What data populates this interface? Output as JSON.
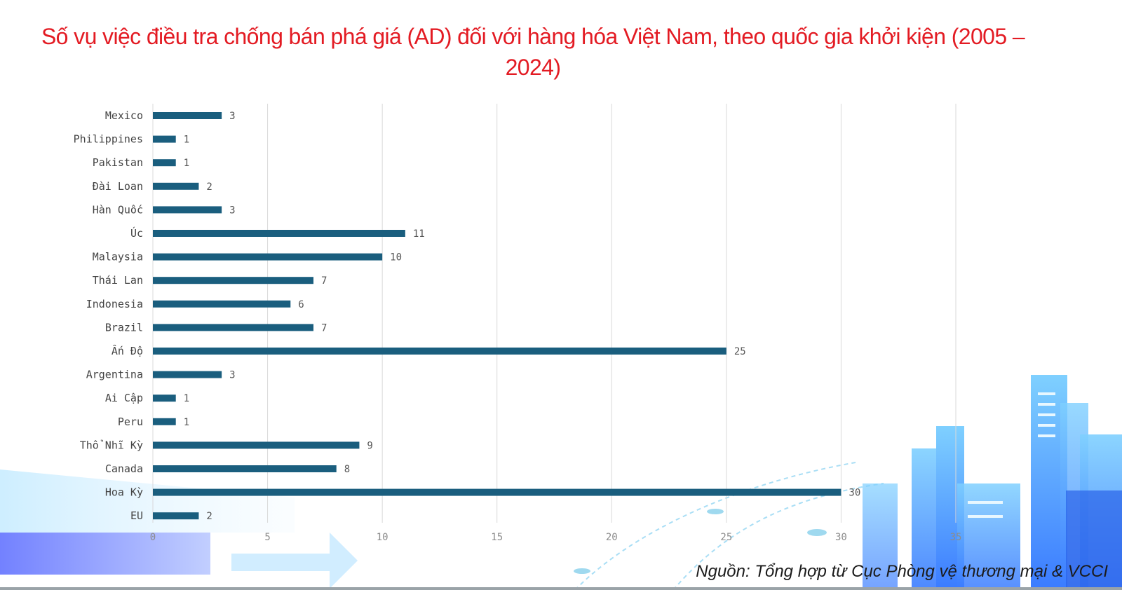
{
  "title": "Số vụ việc điều tra chống bán phá giá (AD) đối với hàng hóa Việt Nam, theo quốc gia khởi kiện (2005 – 2024)",
  "source": "Nguồn: Tổng hợp từ Cục Phòng vệ thương mại & VCCI",
  "colors": {
    "title": "#e31b23",
    "bar": "#1a5e7e",
    "grid": "#d9d9d9"
  },
  "chart_data": {
    "type": "bar",
    "orientation": "horizontal",
    "categories": [
      "Mexico",
      "Philippines",
      "Pakistan",
      "Đài Loan",
      "Hàn Quốc",
      "Úc",
      "Malaysia",
      "Thái Lan",
      "Indonesia",
      "Brazil",
      "Ấn Độ",
      "Argentina",
      "Ai Cập",
      "Peru",
      "Thổ Nhĩ Kỳ",
      "Canada",
      "Hoa Kỳ",
      "EU"
    ],
    "values": [
      3,
      1,
      1,
      2,
      3,
      11,
      10,
      7,
      6,
      7,
      25,
      3,
      1,
      1,
      9,
      8,
      30,
      2
    ],
    "x_ticks": [
      "0",
      "5",
      "10",
      "15",
      "20",
      "25",
      "30",
      "35"
    ],
    "xlim": [
      0,
      35
    ],
    "grid": true
  }
}
